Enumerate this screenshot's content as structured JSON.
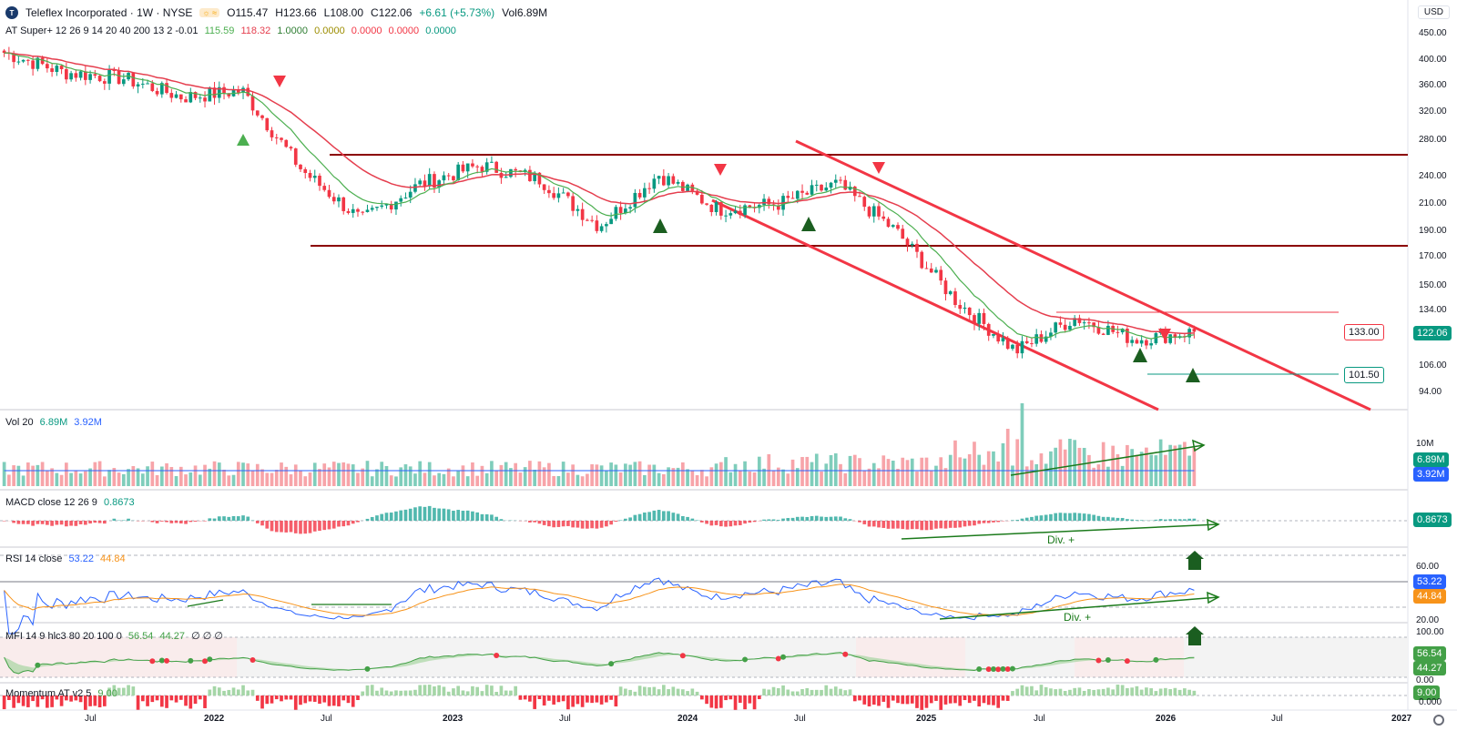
{
  "header": {
    "logo_text": "T",
    "symbol": "Teleflex Incorporated · 1W · NYSE",
    "ohlc": {
      "o": "O115.47",
      "h": "H123.66",
      "l": "L108.00",
      "c": "C122.06",
      "chg": "+6.61 (+5.73%)",
      "vol": "Vol6.89M"
    },
    "indicator": "AT Super+ 12 26 9 14 20 40 200 13 2 -0.01",
    "indicator_values": [
      "115.59",
      "118.32",
      "1.0000",
      "0.0000",
      "0.0000",
      "0.0000",
      "0.0000"
    ]
  },
  "currency": "USD",
  "price_axis": [
    "450.00",
    "400.00",
    "360.00",
    "320.00",
    "280.00",
    "240.00",
    "210.00",
    "190.00",
    "170.00",
    "150.00",
    "134.00",
    "118.00",
    "106.00",
    "94.00"
  ],
  "price_tags": {
    "last": "122.06",
    "upper": "133.00",
    "lower": "101.50"
  },
  "time_axis": [
    "Jul",
    "2022",
    "Jul",
    "2023",
    "Jul",
    "2024",
    "Jul",
    "2025",
    "Jul",
    "2026",
    "Jul",
    "2027"
  ],
  "panes": {
    "vol": {
      "label": "Vol 20",
      "v1": "6.89M",
      "v2": "3.92M",
      "axis": "10M",
      "tag1": "6.89M",
      "tag2": "3.92M"
    },
    "macd": {
      "label": "MACD close 12 26 9",
      "v1": "0.8673",
      "tag": "0.8673",
      "div": "Div. +"
    },
    "rsi": {
      "label": "RSI 14 close",
      "v1": "53.22",
      "v2": "44.84",
      "axis_top": "60.00",
      "axis_bottom": "20.00",
      "tag1": "53.22",
      "tag2": "44.84",
      "div": "Div. +"
    },
    "mfi": {
      "label": "MFI 14 9 hlc3 80 20 100 0",
      "v1": "56.54",
      "v2": "44.27",
      "extra": "∅ ∅ ∅",
      "axis_top": "100.00",
      "axis_bottom": "0.00",
      "tag1": "56.54",
      "tag2": "44.27"
    },
    "mom": {
      "label": "Momentum AT v2 5",
      "v1": "9.00",
      "axis": "0.000",
      "tag": "9.00"
    }
  },
  "colors": {
    "up": "#089981",
    "down": "#f23645",
    "ema_fast": "#4caf50",
    "ema_slow": "#e53e4e",
    "channel": "#f23645",
    "support": "#8b0000",
    "rsi": "#2962ff",
    "rsi_ma": "#f7931a"
  },
  "chart_data": {
    "type": "line",
    "title": "Teleflex Incorporated · 1W · NYSE",
    "x": [
      "2021-05",
      "2021-07",
      "2021-10",
      "2022-01",
      "2022-04",
      "2022-07",
      "2022-10",
      "2023-01",
      "2023-04",
      "2023-07",
      "2023-10",
      "2024-01",
      "2024-04",
      "2024-07",
      "2024-10",
      "2025-01",
      "2025-04",
      "2025-07",
      "2025-10",
      "2026-01",
      "2026-02"
    ],
    "series": [
      {
        "values": [
          420,
          385,
          375,
          345,
          355,
          250,
          200,
          235,
          255,
          240,
          195,
          245,
          210,
          215,
          235,
          190,
          140,
          112,
          130,
          118,
          122
        ]
      }
    ],
    "levels": {
      "resistance": 264,
      "support": 178,
      "upper_tag": 133.0,
      "lower_tag": 101.5,
      "last": 122.06
    },
    "ylim": [
      90,
      470
    ]
  }
}
